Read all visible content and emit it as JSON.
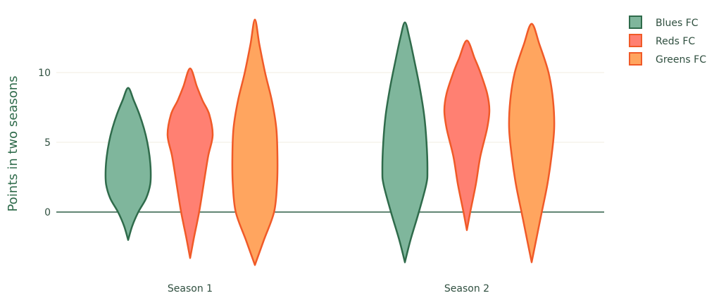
{
  "chart_data": {
    "type": "violin",
    "title": "",
    "xlabel": "",
    "ylabel": "Points in two seasons",
    "ylim": [
      -4,
      14
    ],
    "yticks": [
      0,
      5,
      10
    ],
    "grid": true,
    "categories": [
      "Season 1",
      "Season 2"
    ],
    "legend": {
      "placement": "top-right"
    },
    "series": [
      {
        "name": "Blues FC",
        "fill": "#7fb69c",
        "line": "#2f6b4b",
        "violins": [
          {
            "category": "Season 1",
            "min": -2.0,
            "max": 8.9,
            "density": [
              [
                -2.0,
                0.0
              ],
              [
                -1.0,
                0.18
              ],
              [
                0.0,
                0.45
              ],
              [
                1.0,
                0.8
              ],
              [
                2.0,
                0.98
              ],
              [
                3.0,
                1.0
              ],
              [
                4.0,
                0.95
              ],
              [
                5.0,
                0.85
              ],
              [
                6.0,
                0.7
              ],
              [
                7.0,
                0.5
              ],
              [
                8.0,
                0.25
              ],
              [
                8.9,
                0.0
              ]
            ]
          },
          {
            "category": "Season 2",
            "min": -3.6,
            "max": 13.6,
            "density": [
              [
                -3.6,
                0.0
              ],
              [
                -2.0,
                0.25
              ],
              [
                0.0,
                0.62
              ],
              [
                2.0,
                0.95
              ],
              [
                3.0,
                1.0
              ],
              [
                5.0,
                0.96
              ],
              [
                7.0,
                0.85
              ],
              [
                9.0,
                0.65
              ],
              [
                11.0,
                0.4
              ],
              [
                12.5,
                0.2
              ],
              [
                13.6,
                0.0
              ]
            ]
          }
        ]
      },
      {
        "name": "Reds FC",
        "fill": "#ff8072",
        "line": "#f05a28",
        "violins": [
          {
            "category": "Season 1",
            "min": -3.3,
            "max": 10.3,
            "density": [
              [
                -3.3,
                0.0
              ],
              [
                -2.0,
                0.15
              ],
              [
                0.0,
                0.4
              ],
              [
                2.0,
                0.6
              ],
              [
                4.0,
                0.8
              ],
              [
                5.5,
                1.0
              ],
              [
                7.0,
                0.85
              ],
              [
                8.0,
                0.55
              ],
              [
                9.0,
                0.3
              ],
              [
                10.3,
                0.0
              ]
            ]
          },
          {
            "category": "Season 2",
            "min": -1.3,
            "max": 12.3,
            "density": [
              [
                -1.3,
                0.0
              ],
              [
                0.0,
                0.15
              ],
              [
                2.0,
                0.4
              ],
              [
                4.0,
                0.6
              ],
              [
                6.0,
                0.9
              ],
              [
                7.3,
                1.0
              ],
              [
                8.5,
                0.9
              ],
              [
                10.0,
                0.6
              ],
              [
                11.0,
                0.35
              ],
              [
                12.3,
                0.0
              ]
            ]
          }
        ]
      },
      {
        "name": "Greens FC",
        "fill": "#ffa55f",
        "line": "#f05a28",
        "violins": [
          {
            "category": "Season 1",
            "min": -3.8,
            "max": 13.8,
            "density": [
              [
                -3.8,
                0.0
              ],
              [
                -2.0,
                0.4
              ],
              [
                0.0,
                0.85
              ],
              [
                2.0,
                0.98
              ],
              [
                4.0,
                1.0
              ],
              [
                6.0,
                0.95
              ],
              [
                8.0,
                0.75
              ],
              [
                10.0,
                0.45
              ],
              [
                12.0,
                0.2
              ],
              [
                13.8,
                0.0
              ]
            ]
          },
          {
            "category": "Season 2",
            "min": -3.6,
            "max": 13.5,
            "density": [
              [
                -3.6,
                0.0
              ],
              [
                -2.0,
                0.2
              ],
              [
                0.0,
                0.45
              ],
              [
                2.0,
                0.7
              ],
              [
                4.0,
                0.88
              ],
              [
                6.0,
                1.0
              ],
              [
                8.0,
                0.95
              ],
              [
                10.0,
                0.75
              ],
              [
                12.0,
                0.35
              ],
              [
                13.5,
                0.0
              ]
            ]
          }
        ]
      }
    ]
  }
}
